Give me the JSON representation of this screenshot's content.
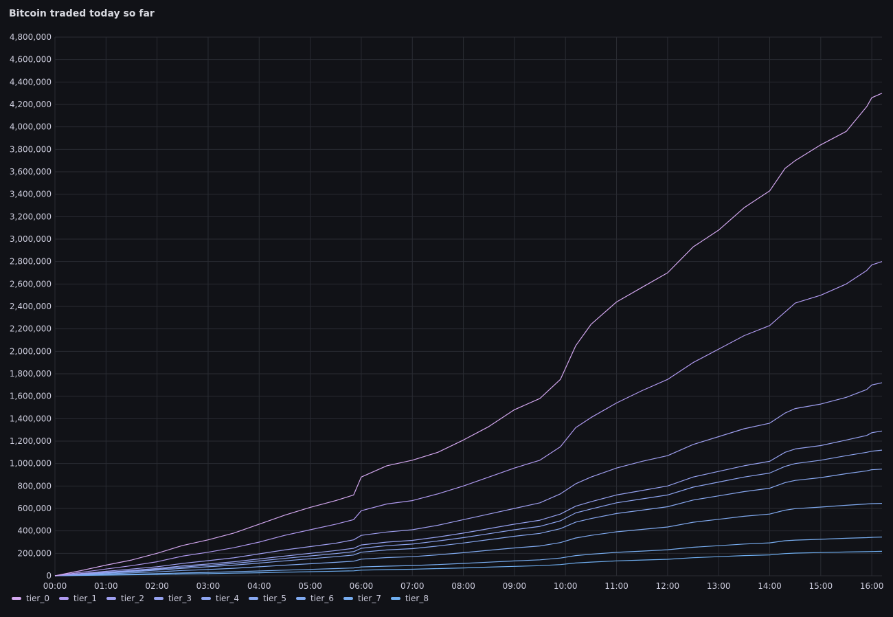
{
  "panel": {
    "title": "Bitcoin traded today so far"
  },
  "chart_data": {
    "type": "line",
    "title": "Bitcoin traded today so far",
    "x_unit": "time of day (hours)",
    "xlim": [
      0,
      16.2
    ],
    "ylim": [
      0,
      4800000
    ],
    "y_ticks": [
      0,
      200000,
      400000,
      600000,
      800000,
      1000000,
      1200000,
      1400000,
      1600000,
      1800000,
      2000000,
      2200000,
      2400000,
      2600000,
      2800000,
      3000000,
      3200000,
      3400000,
      3600000,
      3800000,
      4000000,
      4200000,
      4400000,
      4600000,
      4800000
    ],
    "y_tick_labels": [
      "0",
      "200,000",
      "400,000",
      "600,000",
      "800,000",
      "1,000,000",
      "1,200,000",
      "1,400,000",
      "1,600,000",
      "1,800,000",
      "2,000,000",
      "2,200,000",
      "2,400,000",
      "2,600,000",
      "2,800,000",
      "3,000,000",
      "3,200,000",
      "3,400,000",
      "3,600,000",
      "3,800,000",
      "4,000,000",
      "4,200,000",
      "4,400,000",
      "4,600,000",
      "4,800,000"
    ],
    "x_ticks": [
      0,
      1,
      2,
      3,
      4,
      5,
      6,
      7,
      8,
      9,
      10,
      11,
      12,
      13,
      14,
      15,
      16
    ],
    "x_tick_labels": [
      "00:00",
      "01:00",
      "02:00",
      "03:00",
      "04:00",
      "05:00",
      "06:00",
      "07:00",
      "08:00",
      "09:00",
      "10:00",
      "11:00",
      "12:00",
      "13:00",
      "14:00",
      "15:00",
      "16:00"
    ],
    "grid": true,
    "legend_position": "bottom-left",
    "x": [
      0,
      0.5,
      1,
      1.5,
      2,
      2.5,
      3,
      3.5,
      4,
      4.5,
      5,
      5.5,
      5.85,
      6,
      6.5,
      7,
      7.5,
      8,
      8.5,
      9,
      9.5,
      9.9,
      10.2,
      10.5,
      11,
      11.5,
      12,
      12.5,
      13,
      13.5,
      14,
      14.3,
      14.5,
      15,
      15.5,
      15.9,
      16,
      16.2
    ],
    "series": [
      {
        "name": "tier_0",
        "color": "#d4a8f0",
        "values": [
          0,
          45000,
          95000,
          140000,
          200000,
          270000,
          320000,
          380000,
          460000,
          540000,
          610000,
          670000,
          720000,
          880000,
          980000,
          1030000,
          1100000,
          1210000,
          1330000,
          1480000,
          1580000,
          1750000,
          2050000,
          2240000,
          2440000,
          2570000,
          2700000,
          2930000,
          3080000,
          3280000,
          3430000,
          3630000,
          3700000,
          3840000,
          3960000,
          4180000,
          4260000,
          4300000
        ]
      },
      {
        "name": "tier_1",
        "color": "#b09af0",
        "values": [
          0,
          30000,
          60000,
          90000,
          125000,
          175000,
          210000,
          250000,
          300000,
          360000,
          410000,
          460000,
          500000,
          580000,
          640000,
          670000,
          730000,
          800000,
          880000,
          960000,
          1030000,
          1150000,
          1320000,
          1410000,
          1540000,
          1650000,
          1750000,
          1900000,
          2020000,
          2140000,
          2230000,
          2350000,
          2430000,
          2500000,
          2600000,
          2720000,
          2770000,
          2800000
        ]
      },
      {
        "name": "tier_2",
        "color": "#9f9ff0",
        "values": [
          0,
          20000,
          40000,
          60000,
          80000,
          110000,
          135000,
          160000,
          195000,
          230000,
          260000,
          290000,
          320000,
          360000,
          390000,
          410000,
          450000,
          500000,
          550000,
          600000,
          650000,
          730000,
          820000,
          880000,
          960000,
          1020000,
          1070000,
          1170000,
          1240000,
          1310000,
          1360000,
          1450000,
          1490000,
          1530000,
          1590000,
          1660000,
          1700000,
          1720000
        ]
      },
      {
        "name": "tier_3",
        "color": "#96a2f0",
        "values": [
          0,
          15000,
          32000,
          48000,
          65000,
          88000,
          105000,
          125000,
          150000,
          175000,
          200000,
          225000,
          245000,
          275000,
          300000,
          315000,
          345000,
          380000,
          420000,
          460000,
          495000,
          550000,
          620000,
          660000,
          720000,
          760000,
          800000,
          880000,
          930000,
          980000,
          1020000,
          1100000,
          1130000,
          1160000,
          1210000,
          1250000,
          1275000,
          1290000
        ]
      },
      {
        "name": "tier_4",
        "color": "#8ea5f0",
        "values": [
          0,
          13000,
          28000,
          42000,
          58000,
          78000,
          93000,
          110000,
          132000,
          155000,
          177000,
          198000,
          215000,
          245000,
          268000,
          282000,
          310000,
          340000,
          375000,
          410000,
          440000,
          490000,
          560000,
          595000,
          650000,
          685000,
          720000,
          790000,
          835000,
          880000,
          915000,
          975000,
          1000000,
          1030000,
          1070000,
          1100000,
          1110000,
          1120000
        ]
      },
      {
        "name": "tier_5",
        "color": "#88a8f0",
        "values": [
          0,
          11000,
          24000,
          36000,
          50000,
          67000,
          80000,
          95000,
          113000,
          133000,
          152000,
          170000,
          185000,
          210000,
          230000,
          242000,
          265000,
          292000,
          322000,
          352000,
          378000,
          420000,
          478000,
          510000,
          555000,
          585000,
          615000,
          675000,
          712000,
          750000,
          780000,
          830000,
          850000,
          875000,
          910000,
          935000,
          945000,
          950000
        ]
      },
      {
        "name": "tier_6",
        "color": "#80aaf0",
        "values": [
          0,
          8000,
          17000,
          26000,
          35000,
          47000,
          56000,
          67000,
          80000,
          94000,
          107000,
          120000,
          130000,
          148000,
          162000,
          170000,
          187000,
          206000,
          227000,
          248000,
          266000,
          296000,
          337000,
          360000,
          392000,
          413000,
          435000,
          477000,
          503000,
          530000,
          550000,
          585000,
          598000,
          612000,
          628000,
          640000,
          643000,
          645000
        ]
      },
      {
        "name": "tier_7",
        "color": "#78adf0",
        "values": [
          0,
          4500,
          9500,
          14000,
          19000,
          25000,
          30000,
          36000,
          43000,
          50000,
          57000,
          64000,
          70000,
          79000,
          86000,
          91000,
          100000,
          110000,
          121000,
          132000,
          142000,
          158000,
          180000,
          192000,
          209000,
          220000,
          232000,
          254000,
          268000,
          283000,
          293000,
          312000,
          318000,
          325000,
          334000,
          340000,
          342000,
          345000
        ]
      },
      {
        "name": "tier_8",
        "color": "#6faef0",
        "values": [
          0,
          2800,
          6000,
          9000,
          12000,
          16000,
          19000,
          23000,
          27000,
          32000,
          36000,
          41000,
          44000,
          50000,
          55000,
          58000,
          64000,
          70000,
          77000,
          84000,
          90000,
          100000,
          114000,
          122000,
          133000,
          140000,
          147000,
          161000,
          170000,
          180000,
          186000,
          198000,
          202000,
          207000,
          212000,
          215000,
          216000,
          218000
        ]
      }
    ]
  }
}
